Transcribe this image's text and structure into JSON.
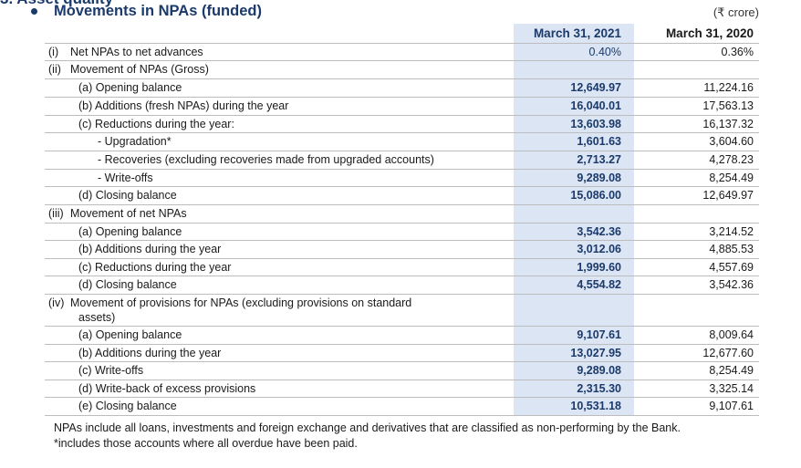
{
  "section": {
    "title": "Movements in NPAs (funded)",
    "unit": "(₹ crore)",
    "col1_header": "March 31, 2021",
    "col2_header": "March 31, 2020"
  },
  "rows": [
    {
      "num": "(i)",
      "label": "Net NPAs to net advances",
      "v1": "0.40%",
      "v2": "0.36%"
    },
    {
      "num": "(ii)",
      "label": "Movement of NPAs (Gross)",
      "v1": "",
      "v2": ""
    },
    {
      "num": "",
      "label": "(a) Opening balance",
      "v1": "12,649.97",
      "v2": "11,224.16"
    },
    {
      "num": "",
      "label": "(b) Additions (fresh NPAs) during the year",
      "v1": "16,040.01",
      "v2": "17,563.13"
    },
    {
      "num": "",
      "label": "(c) Reductions during the year:",
      "v1": "13,603.98",
      "v2": "16,137.32"
    },
    {
      "num": "",
      "label": "-    Upgradation*",
      "v1": "1,601.63",
      "v2": "3,604.60"
    },
    {
      "num": "",
      "label": "-    Recoveries (excluding recoveries made from upgraded accounts)",
      "v1": "2,713.27",
      "v2": "4,278.23"
    },
    {
      "num": "",
      "label": "-    Write-offs",
      "v1": "9,289.08",
      "v2": "8,254.49"
    },
    {
      "num": "",
      "label": "(d) Closing balance",
      "v1": "15,086.00",
      "v2": "12,649.97"
    },
    {
      "num": "(iii)",
      "label": "Movement of net NPAs",
      "v1": "",
      "v2": ""
    },
    {
      "num": "",
      "label": "(a) Opening balance",
      "v1": "3,542.36",
      "v2": "3,214.52"
    },
    {
      "num": "",
      "label": "(b) Additions during the year",
      "v1": "3,012.06",
      "v2": "4,885.53"
    },
    {
      "num": "",
      "label": "(c) Reductions during the year",
      "v1": "1,999.60",
      "v2": "4,557.69"
    },
    {
      "num": "",
      "label": "(d) Closing balance",
      "v1": "4,554.82",
      "v2": "3,542.36"
    },
    {
      "num": "(iv)",
      "label": "Movement of provisions for NPAs (excluding provisions on standard",
      "label2": "assets)",
      "v1": "",
      "v2": ""
    },
    {
      "num": "",
      "label": "(a) Opening balance",
      "v1": "9,107.61",
      "v2": "8,009.64"
    },
    {
      "num": "",
      "label": "(b) Additions during the year",
      "v1": "13,027.95",
      "v2": "12,677.60"
    },
    {
      "num": "",
      "label": "(c) Write-offs",
      "v1": "9,289.08",
      "v2": "8,254.49"
    },
    {
      "num": "",
      "label": "(d) Write-back of excess provisions",
      "v1": "2,315.30",
      "v2": "3,325.14"
    },
    {
      "num": "",
      "label": "(e) Closing balance",
      "v1": "10,531.18",
      "v2": "9,107.61"
    }
  ],
  "notes": [
    "NPAs include all loans, investments and foreign exchange and derivatives that are classified as non-performing by the Bank.",
    "*includes those accounts where all overdue have been paid."
  ]
}
